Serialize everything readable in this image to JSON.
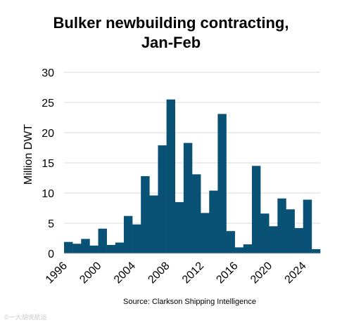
{
  "chart_data": {
    "type": "bar",
    "title": "Bulker newbuilding contracting,",
    "subtitle": "Jan-Feb",
    "ylabel": "Million DWT",
    "xlabel": "",
    "ylim": [
      0,
      30
    ],
    "yticks": [
      "0",
      "5",
      "10",
      "15",
      "20",
      "25",
      "30"
    ],
    "xticks": [
      "1996",
      "2000",
      "2004",
      "2008",
      "2012",
      "2016",
      "2020",
      "2024"
    ],
    "categories": [
      1996,
      1997,
      1998,
      1999,
      2000,
      2001,
      2002,
      2003,
      2004,
      2005,
      2006,
      2007,
      2008,
      2009,
      2010,
      2011,
      2012,
      2013,
      2014,
      2015,
      2016,
      2017,
      2018,
      2019,
      2020,
      2021,
      2022,
      2023,
      2024,
      2025
    ],
    "values": [
      1.9,
      1.6,
      2.4,
      1.3,
      4.1,
      1.4,
      1.8,
      6.2,
      4.8,
      12.8,
      9.6,
      17.9,
      25.5,
      8.5,
      18.3,
      13.1,
      6.7,
      10.4,
      23.1,
      3.7,
      1.0,
      1.5,
      14.5,
      6.6,
      4.5,
      9.1,
      7.3,
      4.2,
      8.9,
      0.7
    ],
    "grid": true,
    "bar_color": "#0a5275",
    "grid_color": "#d9d9d9"
  },
  "source": "Source: Clarkson Shipping Intelligence",
  "watermark": "©一大胡说航运"
}
